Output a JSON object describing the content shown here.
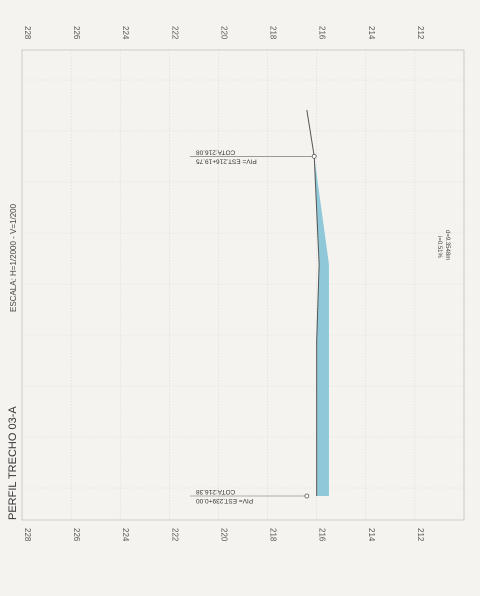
{
  "chart_data": {
    "type": "area",
    "title": "PERFIL TRECHO 03-A",
    "scale_label": "ESCALA: H=1/2000 - V=1/200",
    "ylim": [
      210,
      228
    ],
    "y_ticks": [
      "228",
      "226",
      "224",
      "222",
      "220",
      "218",
      "216",
      "214",
      "212"
    ],
    "grid": true,
    "series": [
      {
        "x": [
          0,
          200,
          300,
          440,
          500
        ],
        "values": [
          216.0,
          216.0,
          215.9,
          216.1,
          216.4
        ],
        "fill_bottom": [
          215.5,
          215.5,
          215.5,
          216.1,
          216.4
        ]
      }
    ],
    "fill_color": "#8fc9d9",
    "annotations": [
      {
        "id": "pv1",
        "x": 440,
        "y": 216.1,
        "line1": "PIV= EST.216+19.75",
        "line2": "COTA:216.08"
      },
      {
        "id": "pv2",
        "x": 0,
        "y": 216.4,
        "line1": "PIV= EST.239+0.00",
        "line2": "COTA:216.38"
      }
    ],
    "grade_labels": [
      "i=0.51%",
      "d=9.3548m"
    ]
  }
}
